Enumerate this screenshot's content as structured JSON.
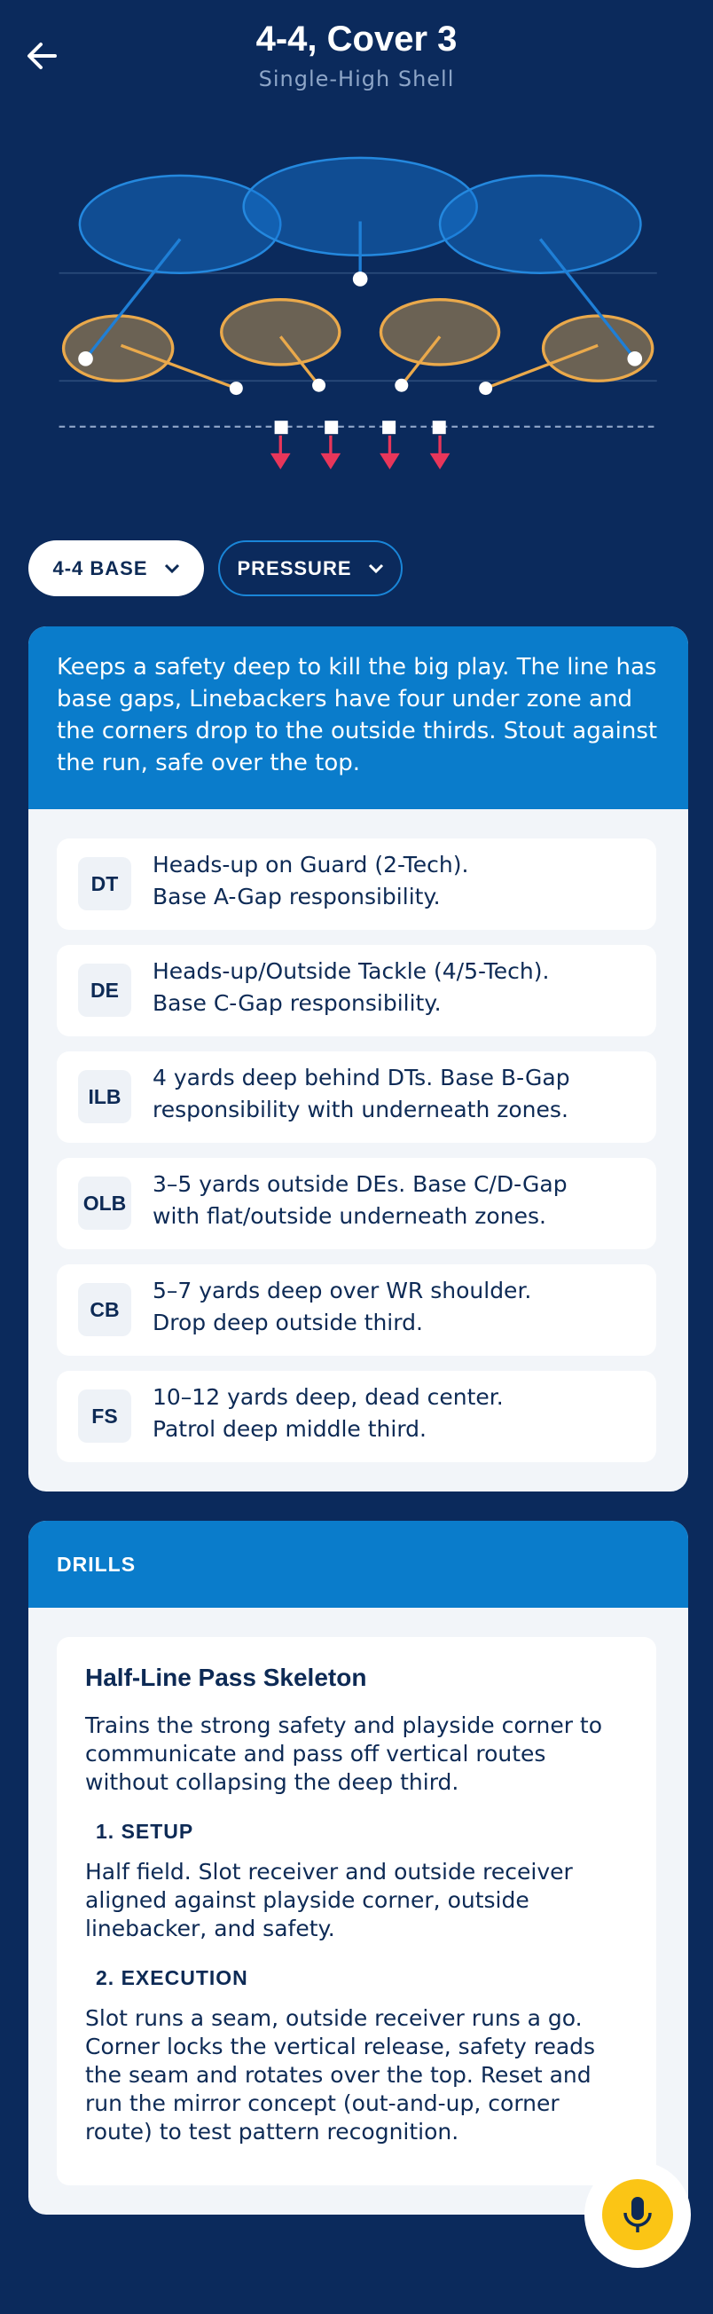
{
  "header": {
    "title": "4-4, Cover 3",
    "subtitle": "Single-High Shell"
  },
  "filters": [
    "4-4 BASE",
    "PRESSURE"
  ],
  "summary": "Keeps a safety deep to kill the big play. The line has base gaps, Linebackers have four under zone and the corners drop to the outside thirds. Stout against the run, safe over the top.",
  "positions": [
    {
      "tag": "DT",
      "lines": [
        "Heads-up on Guard (2-Tech).",
        "Base A-Gap responsibility."
      ]
    },
    {
      "tag": "DE",
      "lines": [
        "Heads-up/Outside Tackle (4/5-Tech).",
        "Base C-Gap responsibility."
      ]
    },
    {
      "tag": "ILB",
      "lines": [
        "4 yards deep behind DTs. Base B-Gap",
        "responsibility with underneath zones."
      ]
    },
    {
      "tag": "OLB",
      "lines": [
        "3–5 yards outside DEs. Base C/D-Gap",
        "with flat/outside underneath zones."
      ]
    },
    {
      "tag": "CB",
      "lines": [
        "5–7 yards deep over WR shoulder.",
        "Drop deep outside third."
      ]
    },
    {
      "tag": "FS",
      "lines": [
        "10–12 yards deep, dead center.",
        "Patrol deep middle third."
      ]
    }
  ],
  "drills": {
    "header": "DRILLS",
    "title": "Half-Line Pass Skeleton",
    "intro": "Trains the strong safety and playside corner to communicate and pass off vertical routes without collapsing the deep third.",
    "steps": [
      {
        "heading": "1. SETUP",
        "text": "Half field. Slot receiver and outside receiver aligned against playside corner, outside linebacker, and safety."
      },
      {
        "heading": "2. EXECUTION",
        "text": "Slot runs a seam, outside receiver runs a go. Corner locks the vertical release, safety reads the seam and rotates over the top. Reset and run the mirror concept (out-and-up, corner route) to test pattern recognition."
      }
    ]
  }
}
